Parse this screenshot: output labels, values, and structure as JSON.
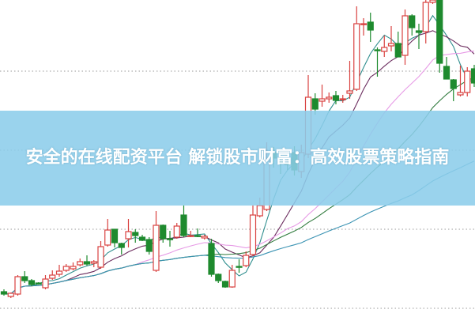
{
  "chart_data": {
    "type": "candlestick",
    "title": "",
    "xlabel": "",
    "ylabel": "",
    "ylim": [
      0,
      400
    ],
    "grid": "horizontal-dotted",
    "gridlines": [
      10,
      110,
      210,
      310
    ],
    "up_color": "#d9413f",
    "down_color": "#1e8a2e",
    "moving_average_colors": [
      "#2f8e8e",
      "#6b2c5e",
      "#e79be6",
      "#2f7a3c",
      "#3a93b3"
    ],
    "candles_ohlc": [
      [
        31,
        34,
        26,
        28
      ],
      [
        25,
        30,
        23,
        29
      ],
      [
        28,
        52,
        26,
        50
      ],
      [
        50,
        57,
        42,
        45
      ],
      [
        45,
        47,
        38,
        40
      ],
      [
        42,
        43,
        40,
        41
      ],
      [
        36,
        52,
        34,
        47
      ],
      [
        48,
        58,
        46,
        52
      ],
      [
        53,
        65,
        50,
        57
      ],
      [
        58,
        66,
        56,
        63
      ],
      [
        60,
        68,
        58,
        63
      ],
      [
        65,
        73,
        63,
        69
      ],
      [
        69,
        77,
        64,
        66
      ],
      [
        67,
        71,
        62,
        69
      ],
      [
        62,
        95,
        60,
        88
      ],
      [
        90,
        123,
        88,
        109
      ],
      [
        110,
        110,
        87,
        93
      ],
      [
        92,
        93,
        78,
        87
      ],
      [
        98,
        123,
        87,
        107
      ],
      [
        106,
        110,
        93,
        102
      ],
      [
        100,
        103,
        95,
        96
      ],
      [
        97,
        100,
        78,
        82
      ],
      [
        58,
        133,
        56,
        115
      ],
      [
        115,
        116,
        93,
        98
      ],
      [
        98,
        108,
        88,
        97
      ],
      [
        100,
        118,
        98,
        114
      ],
      [
        128,
        140,
        100,
        102
      ],
      [
        101,
        108,
        100,
        102
      ],
      [
        102,
        111,
        100,
        101
      ],
      [
        99,
        103,
        97,
        101
      ],
      [
        92,
        98,
        50,
        53
      ],
      [
        53,
        54,
        42,
        45
      ],
      [
        44,
        45,
        36,
        37
      ],
      [
        37,
        65,
        36,
        58
      ],
      [
        63,
        72,
        55,
        62
      ],
      [
        64,
        82,
        62,
        77
      ],
      [
        78,
        140,
        76,
        128
      ],
      [
        127,
        150,
        125,
        140
      ],
      [
        135,
        220,
        133,
        198
      ],
      [
        207,
        214,
        188,
        200
      ],
      [
        195,
        205,
        180,
        194
      ],
      [
        193,
        200,
        185,
        192
      ],
      [
        207,
        215,
        178,
        185
      ],
      [
        183,
        217,
        175,
        207
      ],
      [
        205,
        305,
        200,
        277
      ],
      [
        275,
        282,
        255,
        262
      ],
      [
        272,
        293,
        265,
        275
      ],
      [
        275,
        283,
        270,
        277
      ],
      [
        279,
        285,
        268,
        273
      ],
      [
        274,
        280,
        270,
        275
      ],
      [
        282,
        323,
        275,
        285
      ],
      [
        287,
        392,
        285,
        370
      ],
      [
        369,
        377,
        355,
        370
      ],
      [
        372,
        384,
        347,
        362
      ],
      [
        337,
        340,
        303,
        336
      ],
      [
        335,
        355,
        328,
        340
      ],
      [
        342,
        367,
        335,
        345
      ],
      [
        345,
        360,
        328,
        328
      ],
      [
        330,
        388,
        318,
        380
      ],
      [
        380,
        382,
        355,
        365
      ],
      [
        361,
        370,
        338,
        359
      ],
      [
        360,
        400,
        345,
        397
      ],
      [
        397,
        400,
        395,
        400
      ],
      [
        400,
        400,
        308,
        320
      ],
      [
        316,
        328,
        300,
        300
      ],
      [
        299,
        300,
        272,
        288
      ],
      [
        280,
        317,
        278,
        283
      ],
      [
        283,
        315,
        278,
        310
      ],
      [
        313,
        318,
        290,
        295
      ]
    ]
  },
  "banner": {
    "title": "安全的在线配资平台 解锁股市财富：高效股票策略指南",
    "background": "#8ccdeb"
  }
}
